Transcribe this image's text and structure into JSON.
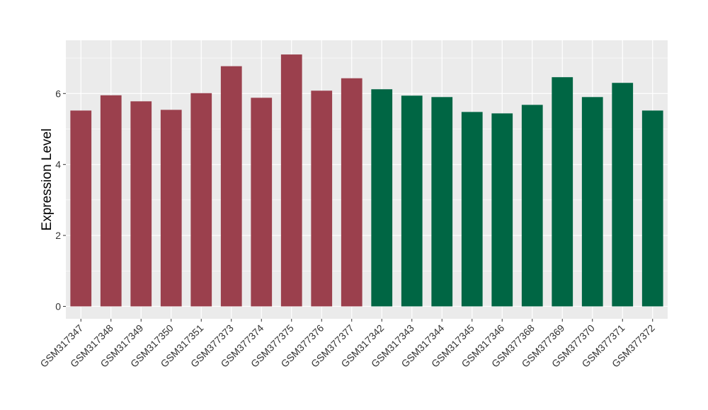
{
  "chart_data": {
    "type": "bar",
    "title": "",
    "xlabel": "",
    "ylabel": "Expression Level",
    "ylim": [
      -0.35,
      7.5
    ],
    "yticks": [
      0,
      2,
      4,
      6
    ],
    "grid": true,
    "legend": "none",
    "categories": [
      "GSM317347",
      "GSM317348",
      "GSM317349",
      "GSM317350",
      "GSM317351",
      "GSM377373",
      "GSM377374",
      "GSM377375",
      "GSM377376",
      "GSM377377",
      "GSM317342",
      "GSM317343",
      "GSM317344",
      "GSM317345",
      "GSM317346",
      "GSM377368",
      "GSM377369",
      "GSM377370",
      "GSM377371",
      "GSM377372"
    ],
    "values": [
      5.52,
      5.95,
      5.78,
      5.54,
      6.01,
      6.77,
      5.88,
      7.1,
      6.08,
      6.43,
      6.12,
      5.94,
      5.9,
      5.48,
      5.44,
      5.68,
      6.46,
      5.9,
      6.3,
      5.52
    ],
    "groups": [
      0,
      0,
      0,
      0,
      0,
      0,
      0,
      0,
      0,
      0,
      1,
      1,
      1,
      1,
      1,
      1,
      1,
      1,
      1,
      1
    ],
    "colors": [
      "#9b404d",
      "#006644"
    ],
    "panel_background": "#ebebeb",
    "grid_color": "#ffffff"
  }
}
